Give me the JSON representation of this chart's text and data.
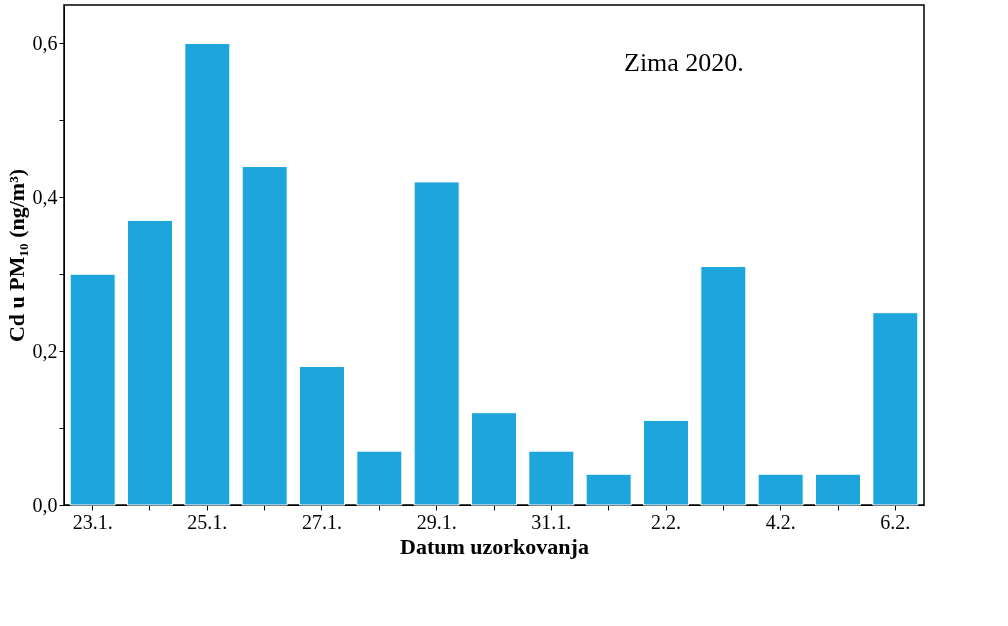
{
  "chart_data": {
    "type": "bar",
    "xlabel": "Datum uzorkovanja",
    "ylabel": "Cd u PM₁₀ (ng/m³)",
    "categories": [
      "23.1.",
      null,
      "25.1.",
      null,
      "27.1.",
      null,
      "29.1.",
      null,
      "31.1.",
      null,
      "2.2.",
      null,
      "4.2.",
      null,
      "6.2."
    ],
    "series": [
      {
        "color": "#1ea6dc",
        "values": [
          0.3,
          0.37,
          0.6,
          0.44,
          0.18,
          0.07,
          0.42,
          0.12,
          0.07,
          0.04,
          0.11,
          0.31,
          0.04,
          0.04,
          0.25
        ]
      }
    ],
    "ylim": [
      0,
      0.65
    ],
    "yticks": [
      {
        "value": 0,
        "label": "0,0"
      },
      {
        "value": 0.1,
        "label": null
      },
      {
        "value": 0.2,
        "label": "0,2"
      },
      {
        "value": 0.3,
        "label": null
      },
      {
        "value": 0.4,
        "label": "0,4"
      },
      {
        "value": 0.5,
        "label": null
      },
      {
        "value": 0.6,
        "label": "0,6"
      }
    ],
    "annotations": [
      "Zima 2020."
    ],
    "grid": false
  }
}
